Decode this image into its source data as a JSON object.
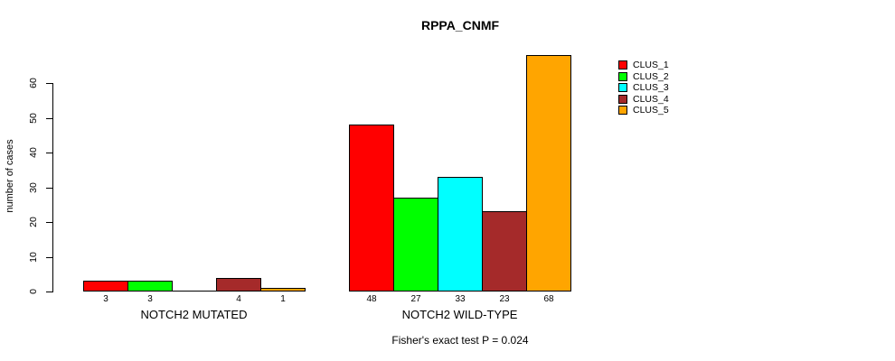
{
  "chart_data": {
    "type": "bar",
    "title": "RPPA_CNMF",
    "ylabel": "number of cases",
    "xlabel": "",
    "yticks": [
      0,
      10,
      20,
      30,
      40,
      50,
      60
    ],
    "ylim": [
      0,
      68
    ],
    "grid": false,
    "legend_position": "top-right-outside",
    "series": [
      "CLUS_1",
      "CLUS_2",
      "CLUS_3",
      "CLUS_4",
      "CLUS_5"
    ],
    "colors": [
      "#ff0000",
      "#00ff00",
      "#00ffff",
      "#a52a2a",
      "#ffa500"
    ],
    "groups": [
      {
        "label": "NOTCH2 MUTATED",
        "values": [
          3,
          3,
          0,
          4,
          1
        ],
        "value_labels": [
          "3",
          "3",
          "",
          "4",
          "1"
        ]
      },
      {
        "label": "NOTCH2 WILD-TYPE",
        "values": [
          48,
          27,
          33,
          23,
          68
        ],
        "value_labels": [
          "48",
          "27",
          "33",
          "23",
          "68"
        ]
      }
    ],
    "annotation": "Fisher's exact test P = 0.024"
  }
}
